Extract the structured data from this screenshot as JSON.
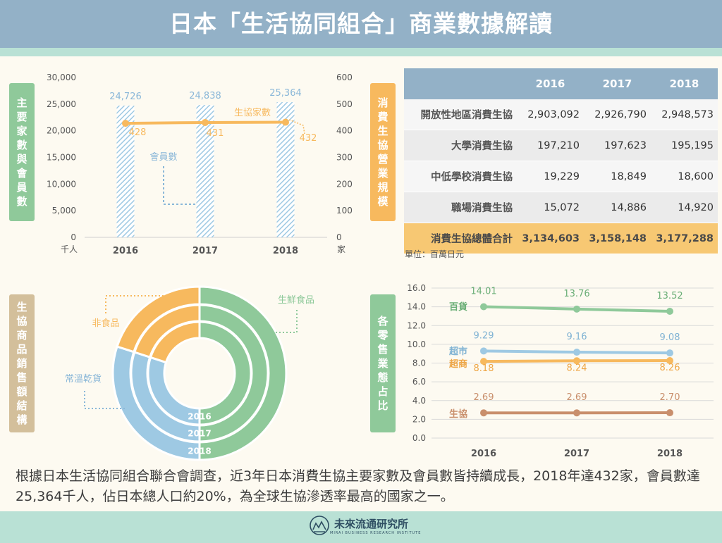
{
  "title": "日本「生活協同組合」商業數據解讀",
  "labels": {
    "members": "主要家數與會員數",
    "sales": "消費生協營業規模",
    "structure": "生協商品銷售額結構",
    "retail": "各零售業態占比"
  },
  "colors": {
    "green": "#8fc99a",
    "orange": "#f7b95e",
    "blue": "#9ec9e3",
    "tan": "#d3bf9b",
    "header": "#93b1c7"
  },
  "chart_data": [
    {
      "type": "bar",
      "categories": [
        "2016",
        "2017",
        "2018"
      ],
      "series": [
        {
          "name": "會員數",
          "values": [
            24726,
            24838,
            25364
          ],
          "value_labels": [
            "24,726",
            "24,838",
            "25,364"
          ]
        },
        {
          "name": "生協家數",
          "values": [
            428,
            431,
            432
          ],
          "value_labels": [
            "428",
            "431",
            "432"
          ]
        }
      ],
      "y_left": {
        "ylim": [
          0,
          30000
        ],
        "ticks": [
          "0",
          "5,000",
          "10,000",
          "15,000",
          "20,000",
          "25,000",
          "30,000"
        ],
        "unit": "千人"
      },
      "y_right": {
        "ylim": [
          0,
          600
        ],
        "ticks": [
          "0",
          "100",
          "200",
          "300",
          "400",
          "500",
          "600"
        ],
        "unit": "家"
      }
    },
    {
      "type": "table",
      "columns": [
        "",
        "2016",
        "2017",
        "2018"
      ],
      "rows": [
        {
          "label": "開放性地區消費生協",
          "values": [
            "2,903,092",
            "2,926,790",
            "2,948,573"
          ]
        },
        {
          "label": "大學消費生協",
          "values": [
            "197,210",
            "197,623",
            "195,195"
          ]
        },
        {
          "label": "中低學校消費生協",
          "values": [
            "19,229",
            "18,849",
            "18,600"
          ]
        },
        {
          "label": "職場消費生協",
          "values": [
            "15,072",
            "14,886",
            "14,920"
          ]
        },
        {
          "label": "消費生協總體合計",
          "values": [
            "3,134,603",
            "3,158,148",
            "3,177,288"
          ]
        }
      ],
      "unit": "單位：百萬日元"
    },
    {
      "type": "pie",
      "rings": [
        "2016",
        "2017",
        "2018"
      ],
      "categories": [
        "生鮮食品",
        "常溫乾貨",
        "非食品"
      ],
      "approx_shares": [
        0.5,
        0.3,
        0.2
      ]
    },
    {
      "type": "line",
      "categories": [
        "2016",
        "2017",
        "2018"
      ],
      "series": [
        {
          "name": "百貨",
          "values": [
            14.01,
            13.76,
            13.52
          ],
          "value_labels": [
            "14.01",
            "13.76",
            "13.52"
          ]
        },
        {
          "name": "超市",
          "values": [
            9.29,
            9.16,
            9.08
          ],
          "value_labels": [
            "9.29",
            "9.16",
            "9.08"
          ]
        },
        {
          "name": "超商",
          "values": [
            8.18,
            8.24,
            8.26
          ],
          "value_labels": [
            "8.18",
            "8.24",
            "8.26"
          ]
        },
        {
          "name": "生協",
          "values": [
            2.69,
            2.69,
            2.7
          ],
          "value_labels": [
            "2.69",
            "2.69",
            "2.70"
          ]
        }
      ],
      "ylim": [
        0,
        16
      ],
      "ticks": [
        "0.0",
        "2.0",
        "4.0",
        "6.0",
        "8.0",
        "10.0",
        "12.0",
        "14.0",
        "16.0"
      ]
    }
  ],
  "note": "根據日本生活協同組合聯合會調查，近3年日本消費生協主要家數及會員數皆持續成長，2018年達432家，會員數達25,364千人，佔日本總人口約20%，為全球生協滲透率最高的國家之一。",
  "brand": {
    "name": "未來流通研究所",
    "sub": "MIRAI BUSINESS RESEARCH INSTITUTE"
  }
}
